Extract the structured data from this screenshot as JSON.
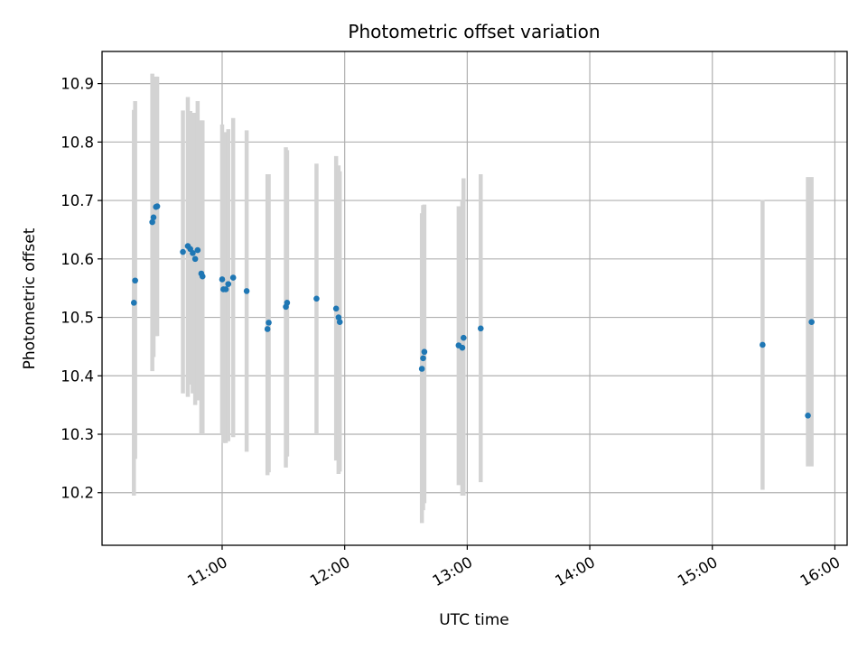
{
  "chart_data": {
    "type": "scatter",
    "title": "Photometric offset variation",
    "xlabel": "UTC time",
    "ylabel": "Photometric offset",
    "x_unit": "hours (UTC)",
    "xlim": [
      10.02,
      16.1
    ],
    "ylim": [
      10.11,
      10.955
    ],
    "grid": true,
    "x_ticks": [
      {
        "value": 11,
        "label": "11:00"
      },
      {
        "value": 12,
        "label": "12:00"
      },
      {
        "value": 13,
        "label": "13:00"
      },
      {
        "value": 14,
        "label": "14:00"
      },
      {
        "value": 15,
        "label": "15:00"
      },
      {
        "value": 16,
        "label": "16:00"
      }
    ],
    "y_ticks": [
      {
        "value": 10.2,
        "label": "10.2"
      },
      {
        "value": 10.3,
        "label": "10.3"
      },
      {
        "value": 10.4,
        "label": "10.4"
      },
      {
        "value": 10.5,
        "label": "10.5"
      },
      {
        "value": 10.6,
        "label": "10.6"
      },
      {
        "value": 10.7,
        "label": "10.7"
      },
      {
        "value": 10.8,
        "label": "10.8"
      },
      {
        "value": 10.9,
        "label": "10.9"
      }
    ],
    "point_color": "#1f77b4",
    "errorbar_color": "#d3d3d3",
    "points": [
      {
        "x": 10.28,
        "y": 10.525,
        "low": 10.195,
        "high": 10.855
      },
      {
        "x": 10.29,
        "y": 10.563,
        "low": 10.258,
        "high": 10.87
      },
      {
        "x": 10.43,
        "y": 10.663,
        "low": 10.408,
        "high": 10.917
      },
      {
        "x": 10.44,
        "y": 10.671,
        "low": 10.432,
        "high": 10.91
      },
      {
        "x": 10.46,
        "y": 10.689,
        "low": 10.468,
        "high": 10.912
      },
      {
        "x": 10.47,
        "y": 10.69,
        "low": 10.468,
        "high": 10.912
      },
      {
        "x": 10.68,
        "y": 10.612,
        "low": 10.37,
        "high": 10.854
      },
      {
        "x": 10.72,
        "y": 10.622,
        "low": 10.364,
        "high": 10.877
      },
      {
        "x": 10.74,
        "y": 10.617,
        "low": 10.385,
        "high": 10.853
      },
      {
        "x": 10.76,
        "y": 10.61,
        "low": 10.37,
        "high": 10.85
      },
      {
        "x": 10.78,
        "y": 10.6,
        "low": 10.35,
        "high": 10.85
      },
      {
        "x": 10.8,
        "y": 10.615,
        "low": 10.358,
        "high": 10.87
      },
      {
        "x": 10.83,
        "y": 10.575,
        "low": 10.3,
        "high": 10.837
      },
      {
        "x": 10.84,
        "y": 10.57,
        "low": 10.3,
        "high": 10.837
      },
      {
        "x": 11.0,
        "y": 10.565,
        "low": 10.3,
        "high": 10.83
      },
      {
        "x": 11.01,
        "y": 10.548,
        "low": 10.285,
        "high": 10.812
      },
      {
        "x": 11.03,
        "y": 10.548,
        "low": 10.285,
        "high": 10.817
      },
      {
        "x": 11.05,
        "y": 10.557,
        "low": 10.288,
        "high": 10.822
      },
      {
        "x": 11.09,
        "y": 10.568,
        "low": 10.295,
        "high": 10.841
      },
      {
        "x": 11.2,
        "y": 10.545,
        "low": 10.27,
        "high": 10.82
      },
      {
        "x": 11.37,
        "y": 10.48,
        "low": 10.23,
        "high": 10.745
      },
      {
        "x": 11.38,
        "y": 10.491,
        "low": 10.235,
        "high": 10.745
      },
      {
        "x": 11.52,
        "y": 10.518,
        "low": 10.243,
        "high": 10.791
      },
      {
        "x": 11.53,
        "y": 10.525,
        "low": 10.262,
        "high": 10.786
      },
      {
        "x": 11.77,
        "y": 10.532,
        "low": 10.3,
        "high": 10.763
      },
      {
        "x": 11.93,
        "y": 10.515,
        "low": 10.255,
        "high": 10.776
      },
      {
        "x": 11.95,
        "y": 10.5,
        "low": 10.232,
        "high": 10.76
      },
      {
        "x": 11.96,
        "y": 10.492,
        "low": 10.236,
        "high": 10.75
      },
      {
        "x": 12.63,
        "y": 10.412,
        "low": 10.148,
        "high": 10.678
      },
      {
        "x": 12.64,
        "y": 10.43,
        "low": 10.17,
        "high": 10.692
      },
      {
        "x": 12.65,
        "y": 10.441,
        "low": 10.182,
        "high": 10.693
      },
      {
        "x": 12.93,
        "y": 10.452,
        "low": 10.213,
        "high": 10.69
      },
      {
        "x": 12.96,
        "y": 10.448,
        "low": 10.195,
        "high": 10.7
      },
      {
        "x": 12.97,
        "y": 10.465,
        "low": 10.195,
        "high": 10.738
      },
      {
        "x": 13.11,
        "y": 10.481,
        "low": 10.218,
        "high": 10.745
      },
      {
        "x": 15.41,
        "y": 10.453,
        "low": 10.205,
        "high": 10.701
      },
      {
        "x": 15.78,
        "y": 10.332,
        "low": 10.245,
        "high": 10.74
      },
      {
        "x": 15.81,
        "y": 10.492,
        "low": 10.245,
        "high": 10.74
      }
    ]
  }
}
